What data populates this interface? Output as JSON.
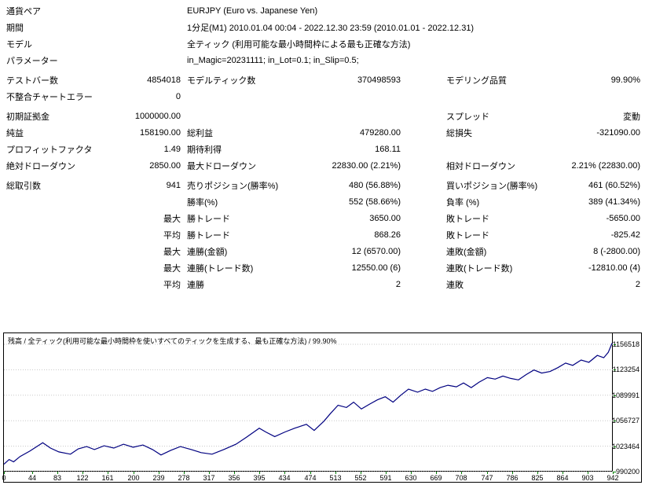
{
  "colors": {
    "line": "#000080",
    "grid": "#c8c8c8",
    "axis_tick": "#008000",
    "border": "#000000"
  },
  "header": {
    "rows": [
      {
        "label": "通貨ペア",
        "value": "EURJPY (Euro vs. Japanese Yen)"
      },
      {
        "label": "期間",
        "value": "1分足(M1) 2010.01.04 00:04 - 2022.12.30 23:59 (2010.01.01 - 2022.12.31)"
      },
      {
        "label": "モデル",
        "value": "全ティック (利用可能な最小時間枠による最も正確な方法)"
      },
      {
        "label": "パラメーター",
        "value": "in_Magic=20231111; in_Lot=0.1; in_Slip=0.5;"
      }
    ]
  },
  "stats": {
    "rows": [
      {
        "cells": [
          "テストバー数",
          "4854018",
          "モデルティック数",
          "370498593",
          "モデリング品質",
          "99.90%"
        ],
        "gap": true
      },
      {
        "cells": [
          "不整合チャートエラー",
          "0",
          "",
          "",
          "",
          ""
        ]
      },
      {
        "cells": [
          "初期証拠金",
          "1000000.00",
          "",
          "",
          "スプレッド",
          "変動"
        ],
        "gap": true
      },
      {
        "cells": [
          "純益",
          "158190.00",
          "総利益",
          "479280.00",
          "総損失",
          "-321090.00"
        ]
      },
      {
        "cells": [
          "プロフィットファクタ",
          "1.49",
          "期待利得",
          "168.11",
          "",
          ""
        ]
      },
      {
        "cells": [
          "絶対ドローダウン",
          "2850.00",
          "最大ドローダウン",
          "22830.00 (2.21%)",
          "相対ドローダウン",
          "2.21% (22830.00)"
        ]
      },
      {
        "cells": [
          "総取引数",
          "941",
          "売りポジション(勝率%)",
          "480 (56.88%)",
          "買いポジション(勝率%)",
          "461 (60.52%)"
        ],
        "gap": true
      },
      {
        "cells": [
          "",
          "",
          "勝率(%)",
          "552 (58.66%)",
          "負率 (%)",
          "389 (41.34%)"
        ]
      },
      {
        "cells": [
          "",
          "最大",
          "勝トレード",
          "3650.00",
          "敗トレード",
          "-5650.00"
        ]
      },
      {
        "cells": [
          "",
          "平均",
          "勝トレード",
          "868.26",
          "敗トレード",
          "-825.42"
        ]
      },
      {
        "cells": [
          "",
          "最大",
          "連勝(金額)",
          "12 (6570.00)",
          "連敗(金額)",
          "8 (-2800.00)"
        ]
      },
      {
        "cells": [
          "",
          "最大",
          "連勝(トレード数)",
          "12550.00 (6)",
          "連敗(トレード数)",
          "-12810.00 (4)"
        ]
      },
      {
        "cells": [
          "",
          "平均",
          "連勝",
          "2",
          "連敗",
          "2"
        ]
      }
    ]
  },
  "chart_data": {
    "type": "line",
    "title": "残高 / 全ティック(利用可能な最小時間枠を使いすべてのティックを生成する、最も正確な方法) / 99.90%",
    "xlabel": "",
    "ylabel": "残高",
    "xlim": [
      0,
      942
    ],
    "ylim": [
      990200,
      1170900
    ],
    "x_ticks": [
      0,
      44,
      83,
      122,
      161,
      200,
      239,
      278,
      317,
      356,
      395,
      434,
      474,
      513,
      552,
      591,
      630,
      669,
      708,
      747,
      786,
      825,
      864,
      903,
      942
    ],
    "y_ticks": [
      990200,
      1023464,
      1056727,
      1089991,
      1123254,
      1156518
    ],
    "grid": true,
    "legend": false,
    "series": [
      {
        "name": "残高",
        "color": "#000080",
        "points": [
          [
            0,
            1000000
          ],
          [
            8,
            1006000
          ],
          [
            15,
            1003000
          ],
          [
            25,
            1010000
          ],
          [
            40,
            1017000
          ],
          [
            60,
            1028000
          ],
          [
            72,
            1021000
          ],
          [
            85,
            1016000
          ],
          [
            103,
            1013000
          ],
          [
            115,
            1020000
          ],
          [
            128,
            1023000
          ],
          [
            140,
            1019000
          ],
          [
            155,
            1024000
          ],
          [
            170,
            1021000
          ],
          [
            185,
            1026000
          ],
          [
            200,
            1022000
          ],
          [
            215,
            1025000
          ],
          [
            230,
            1019000
          ],
          [
            243,
            1012000
          ],
          [
            258,
            1018000
          ],
          [
            273,
            1023000
          ],
          [
            290,
            1019000
          ],
          [
            305,
            1015000
          ],
          [
            322,
            1013000
          ],
          [
            340,
            1019000
          ],
          [
            359,
            1026000
          ],
          [
            375,
            1035000
          ],
          [
            395,
            1047000
          ],
          [
            405,
            1042000
          ],
          [
            419,
            1036000
          ],
          [
            435,
            1042000
          ],
          [
            450,
            1047000
          ],
          [
            468,
            1052000
          ],
          [
            480,
            1044000
          ],
          [
            495,
            1056000
          ],
          [
            505,
            1066000
          ],
          [
            517,
            1077000
          ],
          [
            530,
            1074000
          ],
          [
            541,
            1081000
          ],
          [
            553,
            1072000
          ],
          [
            565,
            1078000
          ],
          [
            578,
            1084000
          ],
          [
            590,
            1088000
          ],
          [
            602,
            1081000
          ],
          [
            614,
            1090000
          ],
          [
            626,
            1098000
          ],
          [
            640,
            1094000
          ],
          [
            652,
            1098000
          ],
          [
            663,
            1095000
          ],
          [
            675,
            1100000
          ],
          [
            687,
            1103000
          ],
          [
            700,
            1101000
          ],
          [
            711,
            1106000
          ],
          [
            723,
            1100000
          ],
          [
            735,
            1107000
          ],
          [
            748,
            1113000
          ],
          [
            760,
            1111000
          ],
          [
            772,
            1115000
          ],
          [
            784,
            1112000
          ],
          [
            796,
            1110000
          ],
          [
            808,
            1117000
          ],
          [
            820,
            1123000
          ],
          [
            832,
            1119000
          ],
          [
            845,
            1121000
          ],
          [
            857,
            1126000
          ],
          [
            869,
            1132000
          ],
          [
            880,
            1129000
          ],
          [
            893,
            1136000
          ],
          [
            905,
            1133000
          ],
          [
            918,
            1142000
          ],
          [
            928,
            1139000
          ],
          [
            935,
            1146000
          ],
          [
            941,
            1158190
          ]
        ]
      }
    ]
  }
}
